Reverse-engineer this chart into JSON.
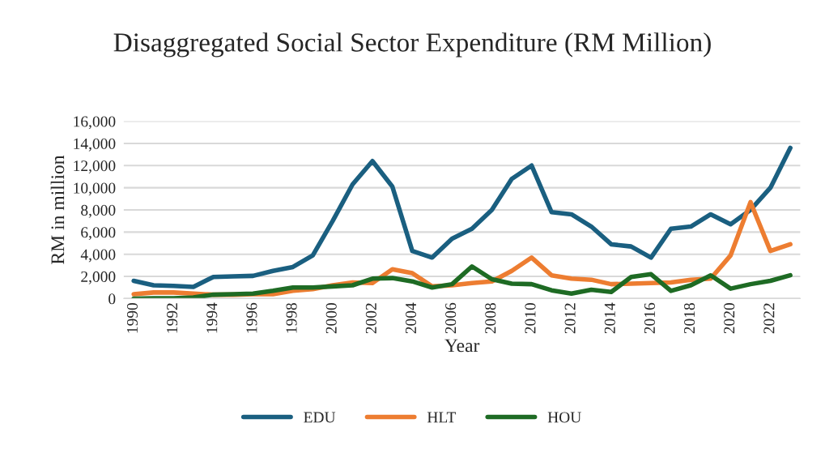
{
  "chart_data": {
    "type": "line",
    "title": "Disaggregated Social Sector Expenditure (RM Million)",
    "xlabel": "Year",
    "ylabel": "RM in million",
    "categories": [
      "1990",
      null,
      "1992",
      null,
      "1994",
      null,
      "1996",
      null,
      "1998",
      null,
      "2000",
      null,
      "2002",
      null,
      "2004",
      null,
      "2006",
      null,
      "2008",
      null,
      "2010",
      null,
      "2012",
      null,
      "2014",
      null,
      "2016",
      null,
      "2018",
      null,
      "2020",
      null,
      "2022",
      null
    ],
    "series": [
      {
        "name": "EDU",
        "color": "#1a5f80",
        "values": [
          1600,
          1200,
          1150,
          1050,
          1950,
          2000,
          2050,
          2500,
          2850,
          3900,
          7000,
          10300,
          12400,
          10100,
          4300,
          3700,
          5400,
          6300,
          8000,
          10800,
          12000,
          7800,
          7600,
          6500,
          4900,
          4700,
          3700,
          6300,
          6500,
          7600,
          6700,
          8000,
          10000,
          13600
        ]
      },
      {
        "name": "HLT",
        "color": "#ed7d31",
        "values": [
          400,
          550,
          550,
          450,
          350,
          350,
          400,
          400,
          700,
          850,
          1200,
          1450,
          1400,
          2650,
          2300,
          1100,
          1200,
          1400,
          1550,
          2500,
          3700,
          2100,
          1800,
          1700,
          1300,
          1350,
          1400,
          1450,
          1700,
          1800,
          3900,
          8700,
          4300,
          4900
        ]
      },
      {
        "name": "HOU",
        "color": "#1e6b24",
        "values": [
          0,
          20,
          20,
          100,
          350,
          400,
          450,
          700,
          1000,
          1000,
          1100,
          1200,
          1800,
          1850,
          1550,
          1000,
          1300,
          2900,
          1750,
          1350,
          1300,
          750,
          450,
          800,
          600,
          1950,
          2200,
          700,
          1200,
          2100,
          900,
          1300,
          1600,
          2100
        ]
      }
    ],
    "ylim": [
      0,
      16000
    ],
    "yticks": [
      {
        "value": 0,
        "label": "0"
      },
      {
        "value": 2000,
        "label": "2,000"
      },
      {
        "value": 4000,
        "label": "4,000"
      },
      {
        "value": 6000,
        "label": "6,000"
      },
      {
        "value": 8000,
        "label": "8,000"
      },
      {
        "value": 10000,
        "label": "10,000"
      },
      {
        "value": 12000,
        "label": "12,000"
      },
      {
        "value": 14000,
        "label": "14,000"
      },
      {
        "value": 16000,
        "label": "16,000"
      }
    ],
    "grid": "y",
    "legend": "bottom",
    "marker": "none",
    "line_style": "solid"
  }
}
